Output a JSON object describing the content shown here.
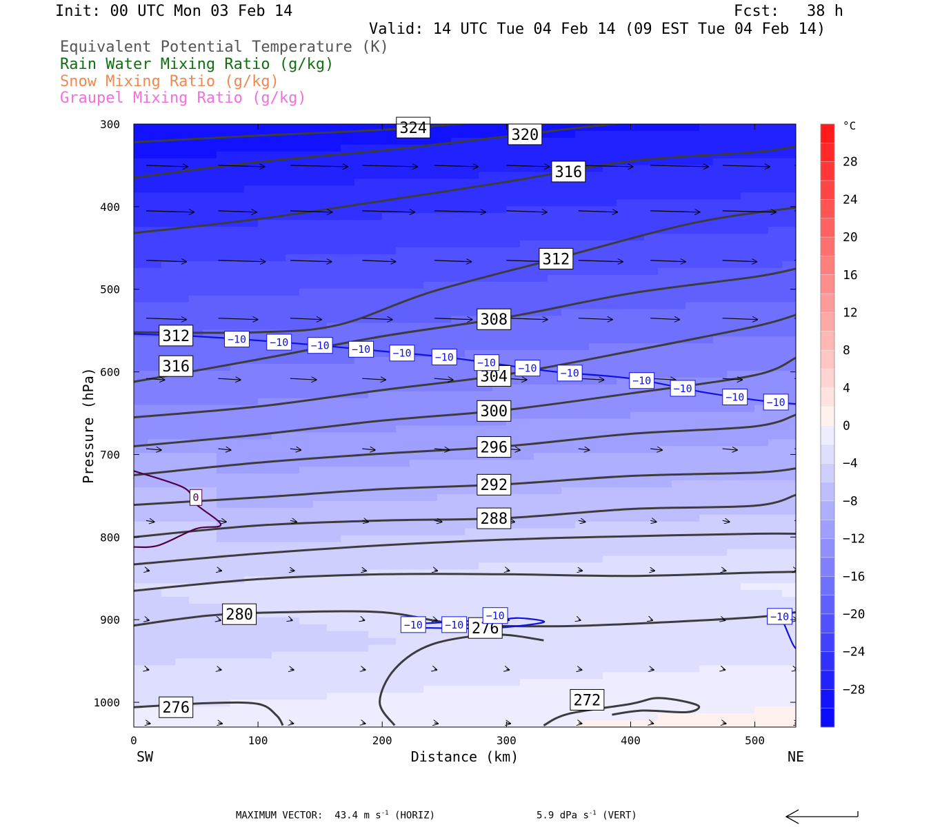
{
  "header": {
    "init": "Init: 00 UTC Mon 03 Feb 14",
    "fcst": "Fcst:   38 h",
    "valid": "Valid: 14 UTC Tue 04 Feb 14 (09 EST Tue 04 Feb 14)"
  },
  "legend": [
    {
      "label": "Equivalent Potential Temperature (K)",
      "color": "#555555"
    },
    {
      "label": "Rain Water Mixing Ratio (g/kg)",
      "color": "#107010"
    },
    {
      "label": "Snow Mixing Ratio (g/kg)",
      "color": "#f08850"
    },
    {
      "label": "Graupel Mixing Ratio (g/kg)",
      "color": "#f070e0"
    }
  ],
  "chart_data": {
    "type": "cross-section",
    "xlabel": "Distance (km)",
    "ylabel": "Pressure (hPa)",
    "xlim": [
      0,
      533
    ],
    "ylim": [
      1030,
      300
    ],
    "x_ticks": [
      0,
      100,
      200,
      300,
      400,
      500
    ],
    "y_ticks": [
      300,
      400,
      500,
      600,
      700,
      800,
      900,
      1000
    ],
    "x_end_labels": {
      "left": "SW",
      "right": "NE"
    },
    "colorbar": {
      "unit": "°C",
      "tick_labels": [
        "28",
        "24",
        "20",
        "16",
        "12",
        "8",
        "4",
        "0",
        "−4",
        "−8",
        "−12",
        "−16",
        "−20",
        "−24",
        "−28"
      ],
      "tick_values": [
        28,
        24,
        20,
        16,
        12,
        8,
        4,
        0,
        -4,
        -8,
        -12,
        -16,
        -20,
        -24,
        -28
      ],
      "min": -32,
      "max": 32,
      "step": 2
    },
    "theta_e_contours": [
      {
        "value": 324,
        "label": "324",
        "points": [
          [
            0,
            322
          ],
          [
            100,
            314
          ],
          [
            200,
            307
          ],
          [
            300,
            296
          ],
          [
            330,
            301
          ]
        ]
      },
      {
        "value": 320,
        "label": "320",
        "points": [
          [
            0,
            365
          ],
          [
            100,
            346
          ],
          [
            200,
            332
          ],
          [
            300,
            315
          ],
          [
            400,
            298
          ],
          [
            500,
            289
          ],
          [
            533,
            287
          ]
        ]
      },
      {
        "value": 316,
        "label": "316",
        "points": [
          [
            0,
            432
          ],
          [
            100,
            415
          ],
          [
            200,
            393
          ],
          [
            300,
            370
          ],
          [
            400,
            345
          ],
          [
            500,
            334
          ],
          [
            533,
            327
          ]
        ]
      },
      {
        "value": 312,
        "label": "312",
        "points": [
          [
            0,
            552
          ],
          [
            100,
            552
          ],
          [
            165,
            543
          ],
          [
            240,
            503
          ],
          [
            340,
            463
          ],
          [
            450,
            420
          ],
          [
            533,
            401
          ]
        ]
      },
      {
        "value": 308,
        "label": "308",
        "points": [
          [
            0,
            612
          ],
          [
            100,
            585
          ],
          [
            200,
            557
          ],
          [
            300,
            534
          ],
          [
            400,
            505
          ],
          [
            500,
            485
          ],
          [
            533,
            475
          ]
        ]
      },
      {
        "value": 304,
        "label": "304",
        "points": [
          [
            0,
            655
          ],
          [
            100,
            642
          ],
          [
            200,
            622
          ],
          [
            300,
            603
          ],
          [
            400,
            575
          ],
          [
            500,
            545
          ],
          [
            533,
            531
          ]
        ]
      },
      {
        "value": 300,
        "label": "300",
        "points": [
          [
            0,
            690
          ],
          [
            100,
            676
          ],
          [
            200,
            659
          ],
          [
            300,
            646
          ],
          [
            400,
            626
          ],
          [
            500,
            604
          ],
          [
            533,
            583
          ]
        ]
      },
      {
        "value": 296,
        "label": "296",
        "points": [
          [
            0,
            725
          ],
          [
            100,
            710
          ],
          [
            200,
            699
          ],
          [
            300,
            690
          ],
          [
            400,
            675
          ],
          [
            500,
            666
          ],
          [
            533,
            652
          ]
        ]
      },
      {
        "value": 292,
        "label": "292",
        "points": [
          [
            0,
            761
          ],
          [
            100,
            752
          ],
          [
            200,
            742
          ],
          [
            300,
            736
          ],
          [
            400,
            726
          ],
          [
            500,
            722
          ],
          [
            533,
            717
          ]
        ]
      },
      {
        "value": 288,
        "label": "288",
        "points": [
          [
            0,
            800
          ],
          [
            100,
            786
          ],
          [
            200,
            780
          ],
          [
            300,
            777
          ],
          [
            400,
            766
          ],
          [
            500,
            762
          ],
          [
            533,
            749
          ]
        ]
      },
      {
        "value": 284,
        "label": "",
        "points": [
          [
            0,
            833
          ],
          [
            100,
            820
          ],
          [
            200,
            810
          ],
          [
            300,
            803
          ],
          [
            400,
            799
          ],
          [
            500,
            796
          ],
          [
            533,
            796
          ]
        ]
      },
      {
        "value": 280,
        "label": "280",
        "points": [
          [
            0,
            865
          ],
          [
            100,
            851
          ],
          [
            200,
            845
          ],
          [
            300,
            845
          ],
          [
            400,
            847
          ],
          [
            500,
            843
          ],
          [
            533,
            842
          ]
        ]
      },
      {
        "value": 280,
        "label": "",
        "points": [
          [
            0,
            907
          ],
          [
            60,
            895
          ],
          [
            120,
            891
          ],
          [
            200,
            891
          ],
          [
            260,
            905
          ],
          [
            330,
            908
          ],
          [
            400,
            905
          ],
          [
            500,
            897
          ],
          [
            533,
            891
          ]
        ]
      },
      {
        "value": 276,
        "label": "276",
        "points": [
          [
            0,
            1006
          ],
          [
            60,
            1001
          ],
          [
            100,
            1002
          ],
          [
            115,
            1016
          ],
          [
            120,
            1028
          ]
        ]
      },
      {
        "value": 276,
        "label": "276",
        "points": [
          [
            210,
            1028
          ],
          [
            198,
            1000
          ],
          [
            210,
            960
          ],
          [
            240,
            930
          ],
          [
            290,
            918
          ],
          [
            330,
            925
          ]
        ]
      },
      {
        "value": 272,
        "label": "272",
        "points": [
          [
            330,
            1028
          ],
          [
            350,
            1014
          ],
          [
            400,
            1002
          ],
          [
            420,
            995
          ],
          [
            440,
            998
          ],
          [
            455,
            1005
          ],
          [
            445,
            1012
          ],
          [
            410,
            1010
          ],
          [
            385,
            1015
          ]
        ]
      }
    ],
    "temperature_contours": [
      {
        "value": -10,
        "label": "−10",
        "points": [
          [
            0,
            554
          ],
          [
            50,
            557
          ],
          [
            100,
            562
          ],
          [
            150,
            568
          ],
          [
            200,
            575
          ],
          [
            250,
            582
          ],
          [
            290,
            590
          ],
          [
            340,
            600
          ],
          [
            400,
            608
          ],
          [
            460,
            625
          ],
          [
            500,
            634
          ],
          [
            533,
            639
          ]
        ]
      },
      {
        "value": -10,
        "label": "−10",
        "points": [
          [
            215,
            905
          ],
          [
            240,
            904
          ],
          [
            260,
            902
          ],
          [
            290,
            901
          ],
          [
            310,
            898
          ],
          [
            330,
            903
          ],
          [
            290,
            910
          ],
          [
            240,
            910
          ],
          [
            215,
            909
          ]
        ]
      },
      {
        "value": -10,
        "label": "−10",
        "points": [
          [
            523,
            903
          ],
          [
            530,
            928
          ],
          [
            533,
            935
          ]
        ]
      },
      {
        "value": 0,
        "label": "0",
        "points": [
          [
            0,
            720
          ],
          [
            40,
            740
          ],
          [
            50,
            760
          ],
          [
            70,
            785
          ],
          [
            50,
            790
          ],
          [
            20,
            810
          ],
          [
            0,
            812
          ]
        ]
      }
    ],
    "wind_vectors_note": "arrow vectors",
    "max_vector": {
      "label": "MAXIMUM VECTOR:",
      "horiz_value": 43.4,
      "horiz_unit": "m s",
      "horiz_suffix": "(HORIZ)",
      "vert_value": 5.9,
      "vert_unit": "dPa s",
      "vert_suffix": "(VERT)"
    }
  }
}
